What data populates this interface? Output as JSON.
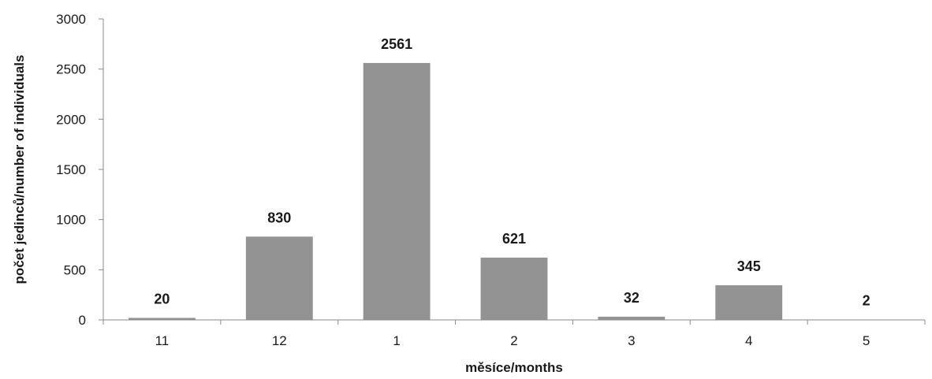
{
  "chart_data": {
    "type": "bar",
    "categories": [
      "11",
      "12",
      "1",
      "2",
      "3",
      "4",
      "5"
    ],
    "values": [
      20,
      830,
      2561,
      621,
      32,
      345,
      2
    ],
    "data_labels": [
      "20",
      "830",
      "2561",
      "621",
      "32",
      "345",
      "2"
    ],
    "xlabel": "měsíce/months",
    "ylabel": "počet jedinců/number of individuals",
    "ylim": [
      0,
      3000
    ],
    "yticks": [
      0,
      500,
      1000,
      1500,
      2000,
      2500,
      3000
    ],
    "ytick_labels": [
      "0",
      "500",
      "1000",
      "1500",
      "2000",
      "2500",
      "3000"
    ],
    "grid": false,
    "legend": "none",
    "bar_color": "#939393"
  }
}
